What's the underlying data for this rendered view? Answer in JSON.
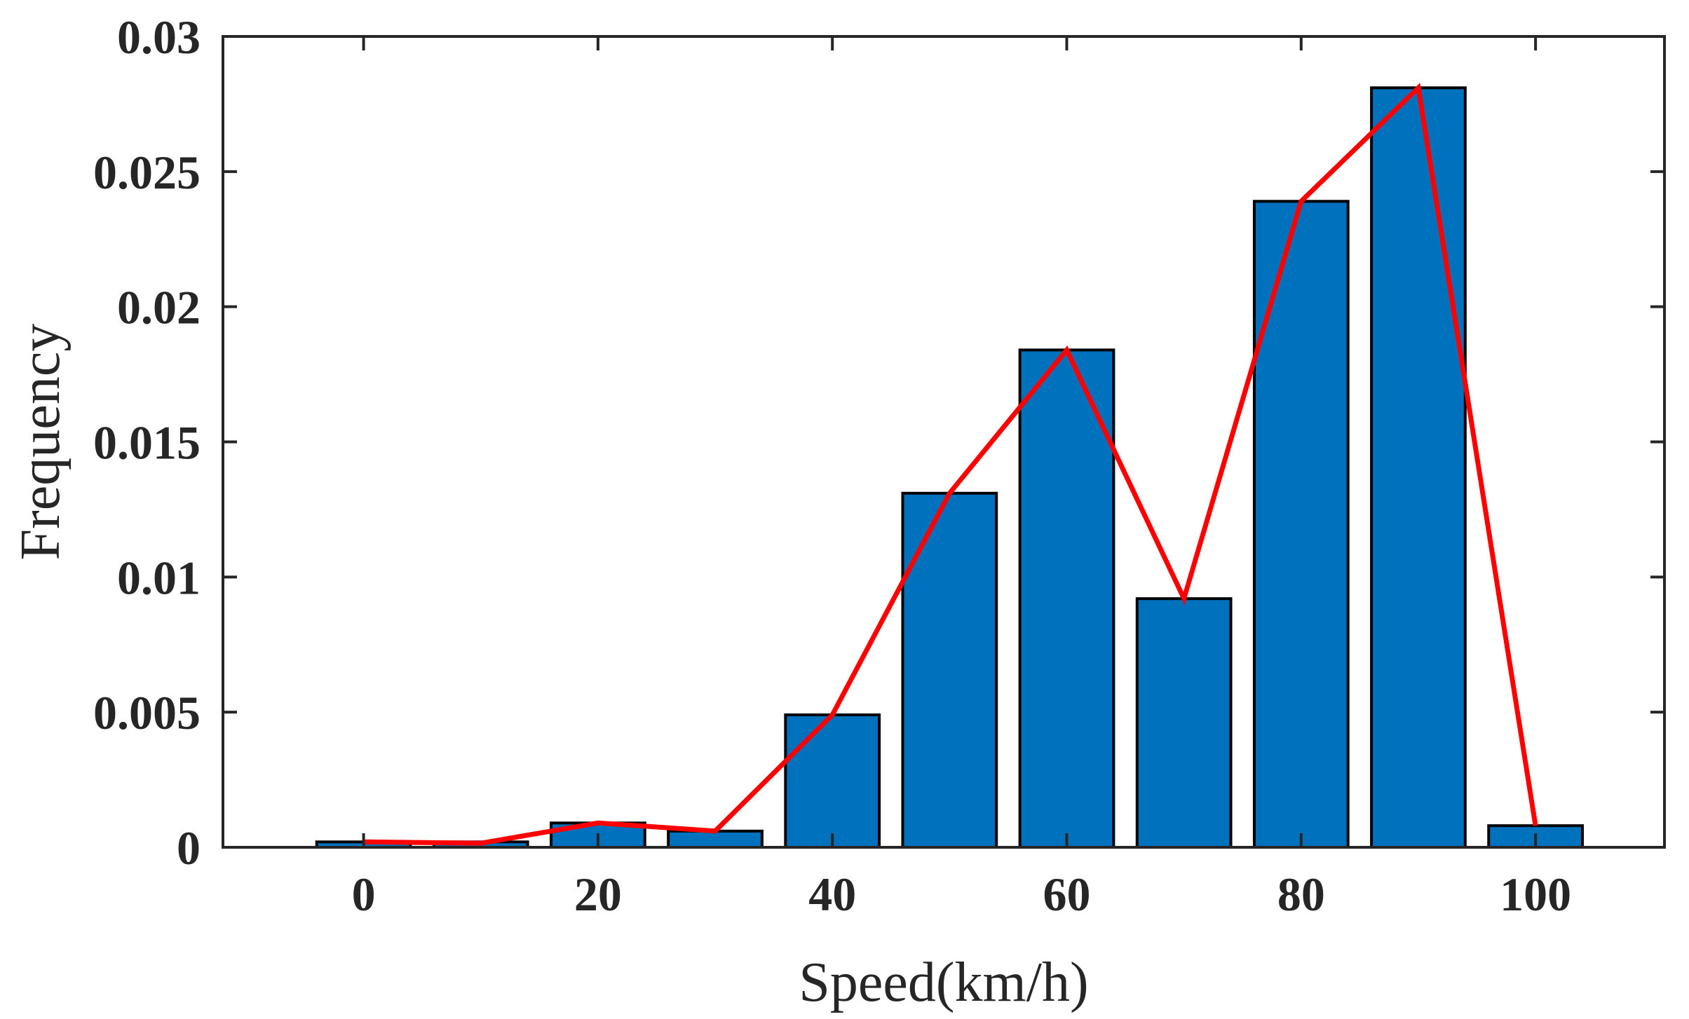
{
  "colors": {
    "bar_fill": "#0072BD",
    "bar_edge": "#000000",
    "line": "#FF0000",
    "axis": "#262626"
  },
  "chart_data": {
    "type": "bar",
    "title": "",
    "xlabel": "Speed(km/h)",
    "ylabel": "Frequency",
    "xlim": [
      -12,
      111
    ],
    "ylim": [
      0,
      0.03
    ],
    "bar_width": 8,
    "grid": false,
    "x": [
      0,
      10,
      20,
      30,
      40,
      50,
      60,
      70,
      80,
      90,
      100
    ],
    "series": [
      {
        "name": "histogram",
        "type": "bar",
        "values": [
          0.0002,
          0.0002,
          0.0009,
          0.0006,
          0.0049,
          0.0131,
          0.0184,
          0.0092,
          0.0239,
          0.0281,
          0.0008
        ]
      },
      {
        "name": "trend",
        "type": "line",
        "values": [
          0.0002,
          0.00015,
          0.0009,
          0.0006,
          0.0049,
          0.0131,
          0.0184,
          0.0092,
          0.0239,
          0.0281,
          0.0008
        ]
      }
    ],
    "xticks": [
      0,
      20,
      40,
      60,
      80,
      100
    ],
    "xtick_labels": [
      "0",
      "20",
      "40",
      "60",
      "80",
      "100"
    ],
    "yticks": [
      0,
      0.005,
      0.01,
      0.015,
      0.02,
      0.025,
      0.03
    ],
    "ytick_labels": [
      "0",
      "0.005",
      "0.01",
      "0.015",
      "0.02",
      "0.025",
      "0.03"
    ]
  }
}
